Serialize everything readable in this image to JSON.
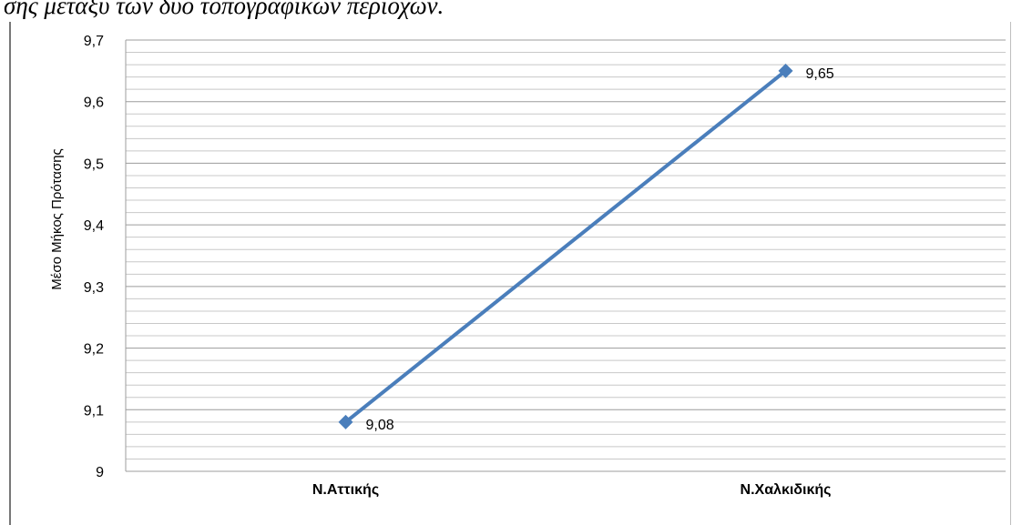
{
  "caption": "σης μεταξύ των δύο τοπογραφικών περιοχών.",
  "chart_data": {
    "type": "line",
    "categories": [
      "Ν.Αττικής",
      "Ν.Χαλκιδικής"
    ],
    "series": [
      {
        "values": [
          9.08,
          9.65
        ],
        "data_labels": [
          "9,08",
          "9,65"
        ]
      }
    ],
    "ylabel": "Μέσο Μήκος Πρότασης",
    "xlabel": "",
    "ylim": [
      9,
      9.7
    ],
    "yticks": [
      9,
      9.1,
      9.2,
      9.3,
      9.4,
      9.5,
      9.6,
      9.7
    ],
    "ytick_labels": [
      "9",
      "9,1",
      "9,2",
      "9,3",
      "9,4",
      "9,5",
      "9,6",
      "9,7"
    ],
    "minor_gridlines": true,
    "legend": "none",
    "colors": {
      "line": "#4a7ebb",
      "grid": "#9c9c9c",
      "minor_grid": "#c8c8c8"
    }
  }
}
